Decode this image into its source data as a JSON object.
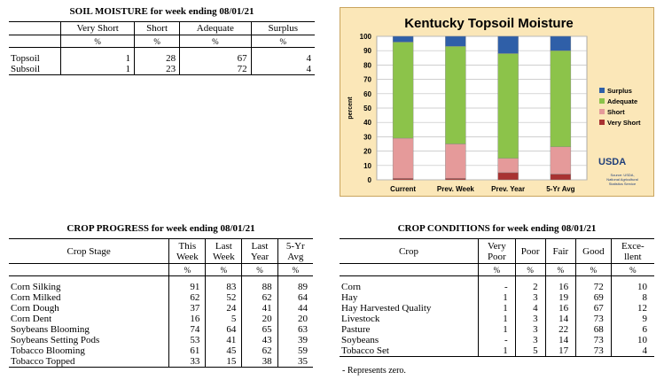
{
  "soil_moisture": {
    "title": "SOIL MOISTURE for week ending 08/01/21",
    "columns": [
      "",
      "Very Short",
      "Short",
      "Adequate",
      "Surplus"
    ],
    "units": [
      "",
      "%",
      "%",
      "%",
      "%"
    ],
    "rows": [
      [
        "Topsoil",
        "1",
        "28",
        "67",
        "4"
      ],
      [
        "Subsoil",
        "1",
        "23",
        "72",
        "4"
      ]
    ]
  },
  "crop_progress": {
    "title": "CROP PROGRESS for week ending 08/01/21",
    "columns": [
      "Crop Stage",
      "This Week",
      "Last Week",
      "Last Year",
      "5-Yr Avg"
    ],
    "header_lines": [
      [
        "Crop Stage"
      ],
      [
        "This",
        "Week"
      ],
      [
        "Last",
        "Week"
      ],
      [
        "Last",
        "Year"
      ],
      [
        "5-Yr",
        "Avg"
      ]
    ],
    "units": [
      "",
      "%",
      "%",
      "%",
      "%"
    ],
    "rows": [
      [
        "Corn Silking",
        "91",
        "83",
        "88",
        "89"
      ],
      [
        "Corn Milked",
        "62",
        "52",
        "62",
        "64"
      ],
      [
        "Corn Dough",
        "37",
        "24",
        "41",
        "44"
      ],
      [
        "Corn Dent",
        "16",
        "5",
        "20",
        "20"
      ],
      [
        "Soybeans Blooming",
        "74",
        "64",
        "65",
        "63"
      ],
      [
        "Soybeans Setting Pods",
        "53",
        "41",
        "43",
        "39"
      ],
      [
        "Tobacco Blooming",
        "61",
        "45",
        "62",
        "59"
      ],
      [
        "Tobacco Topped",
        "33",
        "15",
        "38",
        "35"
      ]
    ]
  },
  "crop_conditions": {
    "title": "CROP CONDITIONS for week ending 08/01/21",
    "header_lines": [
      [
        "Crop"
      ],
      [
        "Very",
        "Poor"
      ],
      [
        "Poor"
      ],
      [
        "Fair"
      ],
      [
        "Good"
      ],
      [
        "Exce-",
        "llent"
      ]
    ],
    "units": [
      "",
      "%",
      "%",
      "%",
      "%",
      "%"
    ],
    "rows": [
      [
        "Corn",
        "-",
        "2",
        "16",
        "72",
        "10"
      ],
      [
        "Hay",
        "1",
        "3",
        "19",
        "69",
        "8"
      ],
      [
        "Hay Harvested Quality",
        "1",
        "4",
        "16",
        "67",
        "12"
      ],
      [
        "Livestock",
        "1",
        "3",
        "14",
        "73",
        "9"
      ],
      [
        "Pasture",
        "1",
        "3",
        "22",
        "68",
        "6"
      ],
      [
        "Soybeans",
        "-",
        "3",
        "14",
        "73",
        "10"
      ],
      [
        "Tobacco Set",
        "1",
        "5",
        "17",
        "73",
        "4"
      ]
    ],
    "note": "- Represents zero."
  },
  "chart_data": {
    "type": "bar",
    "stacked": true,
    "title": "Kentucky Topsoil Moisture",
    "ylabel": "percent",
    "ylim": [
      0,
      100
    ],
    "yticks": [
      "0",
      "10",
      "20",
      "30",
      "40",
      "50",
      "60",
      "70",
      "80",
      "90",
      "100"
    ],
    "categories": [
      "Current",
      "Prev. Week",
      "Prev. Year",
      "5-Yr Avg"
    ],
    "series": [
      {
        "name": "Very Short",
        "color": "#a83232",
        "values": [
          1,
          1,
          5,
          4
        ]
      },
      {
        "name": "Short",
        "color": "#e59a9a",
        "values": [
          28,
          24,
          10,
          19
        ]
      },
      {
        "name": "Adequate",
        "color": "#8cc34a",
        "values": [
          67,
          68,
          73,
          67
        ]
      },
      {
        "name": "Surplus",
        "color": "#2f5fa8",
        "values": [
          4,
          7,
          12,
          10
        ]
      }
    ],
    "legend_order": [
      "Surplus",
      "Adequate",
      "Short",
      "Very Short"
    ],
    "legend": "right",
    "grid": true,
    "source_logo": "USDA",
    "source_text": [
      "Source: USDA,",
      "National Agricultural",
      "Statistics Service"
    ]
  }
}
